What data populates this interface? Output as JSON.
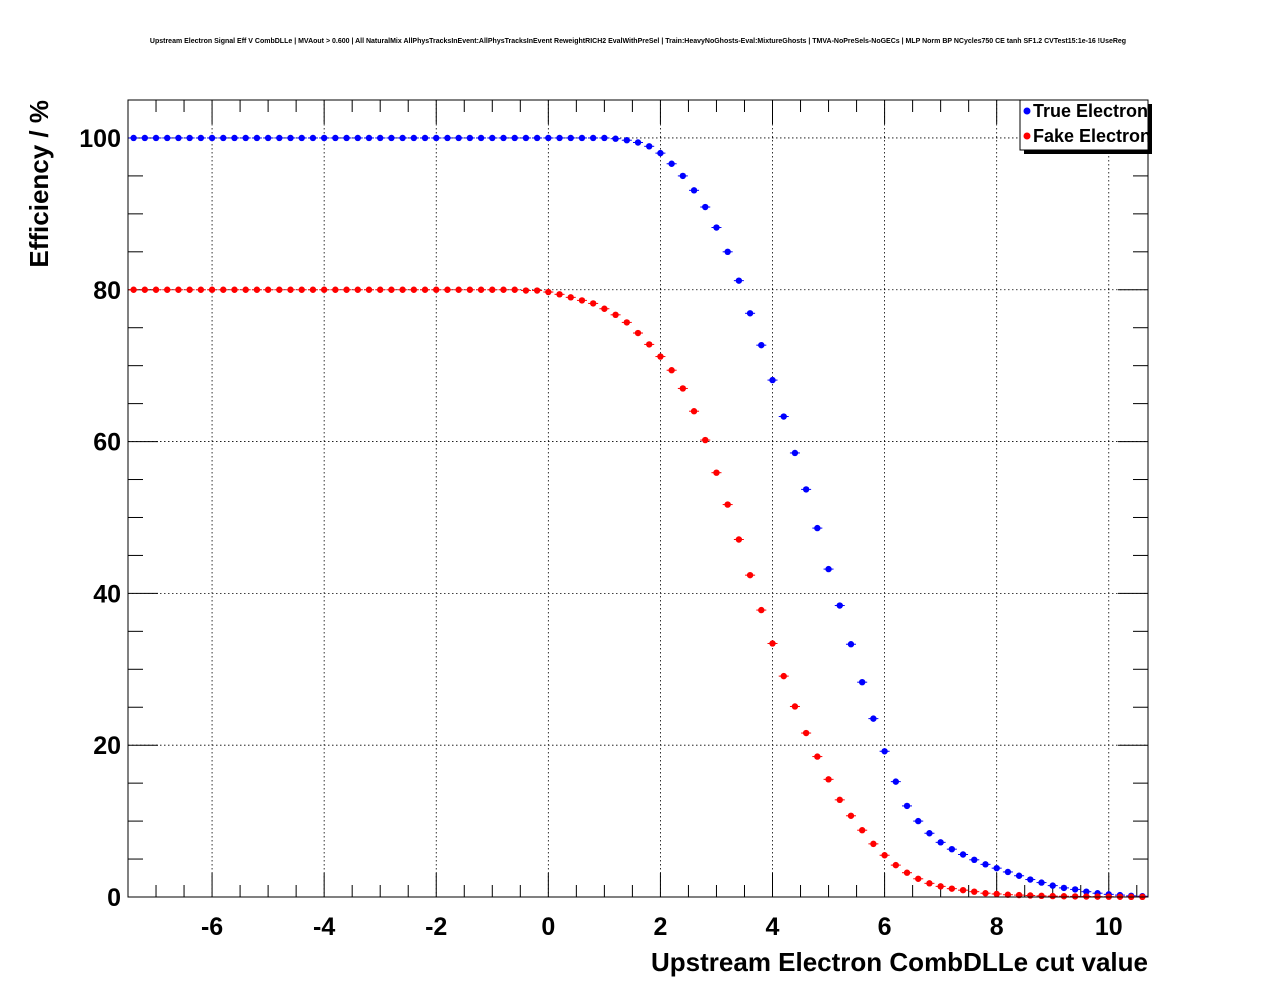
{
  "chart_data": {
    "type": "scatter",
    "title": "Upstream Electron Signal Eff V CombDLLe | MVAout > 0.600 | All NaturalMix AllPhysTracksInEvent:AllPhysTracksInEvent ReweightRICH2 EvalWithPreSel | Train:HeavyNoGhosts-Eval:MixtureGhosts | TMVA-NoPreSels-NoGECs | MLP Norm BP NCycles750 CE tanh SF1.2 CVTest15:1e-16 !UseReg",
    "xlabel": "Upstream Electron CombDLLe cut value",
    "ylabel": "Efficiency / %",
    "xlim": [
      -7.5,
      10.7
    ],
    "ylim": [
      0,
      105
    ],
    "x_ticks": [
      -6,
      -4,
      -2,
      0,
      2,
      4,
      6,
      8,
      10
    ],
    "x_tick_labels": [
      "-6",
      "-4",
      "-2",
      "0",
      "2",
      "4",
      "6",
      "8",
      "10"
    ],
    "y_ticks": [
      0,
      20,
      40,
      60,
      80,
      100
    ],
    "y_tick_labels": [
      "0",
      "20",
      "40",
      "60",
      "80",
      "100"
    ],
    "grid": true,
    "legend_position": "top-right",
    "x_start": -7.4,
    "x_step": 0.2,
    "series": [
      {
        "name": "True Electron",
        "color": "#0000ff",
        "values": [
          100,
          100,
          100,
          100,
          100,
          100,
          100,
          100,
          100,
          100,
          100,
          100,
          100,
          100,
          100,
          100,
          100,
          100,
          100,
          100,
          100,
          100,
          100,
          100,
          100,
          100,
          100,
          100,
          100,
          100,
          100,
          100,
          100,
          100,
          100,
          100,
          100,
          100,
          100,
          100,
          100,
          100,
          100,
          99.9,
          99.7,
          99.4,
          98.9,
          98.0,
          96.6,
          95.0,
          93.1,
          90.9,
          88.2,
          85.0,
          81.2,
          76.9,
          72.7,
          68.1,
          63.3,
          58.5,
          53.7,
          48.6,
          43.2,
          38.4,
          33.3,
          28.3,
          23.5,
          19.2,
          15.2,
          12.0,
          10.0,
          8.4,
          7.2,
          6.3,
          5.6,
          4.9,
          4.3,
          3.8,
          3.3,
          2.8,
          2.3,
          1.9,
          1.5,
          1.2,
          1.0,
          0.7,
          0.5,
          0.35,
          0.25,
          0.15,
          0.1
        ]
      },
      {
        "name": "Fake Electron",
        "color": "#ff0000",
        "values": [
          80,
          80,
          80,
          80,
          80,
          80,
          80,
          80,
          80,
          80,
          80,
          80,
          80,
          80,
          80,
          80,
          80,
          80,
          80,
          80,
          80,
          80,
          80,
          80,
          80,
          80,
          80,
          80,
          80,
          80,
          80,
          80,
          80,
          80,
          80,
          79.9,
          79.9,
          79.7,
          79.4,
          79.0,
          78.6,
          78.2,
          77.5,
          76.7,
          75.7,
          74.3,
          72.8,
          71.2,
          69.4,
          67.0,
          64.0,
          60.2,
          55.9,
          51.7,
          47.1,
          42.4,
          37.8,
          33.4,
          29.1,
          25.1,
          21.6,
          18.5,
          15.5,
          12.8,
          10.7,
          8.8,
          7.0,
          5.5,
          4.2,
          3.2,
          2.4,
          1.8,
          1.4,
          1.1,
          0.9,
          0.7,
          0.5,
          0.4,
          0.3,
          0.25,
          0.2,
          0.15,
          0.12,
          0.1,
          0.08,
          0.06,
          0.05,
          0.04,
          0.03,
          0.02,
          0.02
        ]
      }
    ]
  }
}
